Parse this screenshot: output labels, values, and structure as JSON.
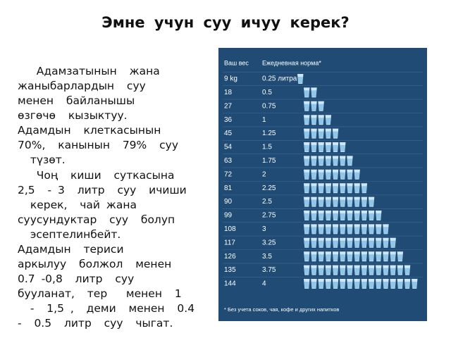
{
  "title": "Эмне учун суу   ичуу  керек?",
  "paragraphs": [
    [
      "   Адамзатынын  жана",
      "жаныбарлардын  суу",
      "менен  байланышы",
      "өзгөчө  кызыктуу.",
      "Адамдын  клеткасынын",
      "70%,  канынын  79%  суу",
      "  түзөт."
    ],
    [
      "   Чоң  киши  суткасына",
      "2,5  - 3  литр  суу  ичиши",
      "  керек,  чай жана",
      "суусундуктар  суу  болуп",
      "  эсептелинбейт.",
      "Адамдын  териси",
      "аркылуу  болжол  менен",
      "0.7 -0,8  литр  суу",
      "бууланат,  тер   менен  1",
      "  -  1,5 ,  деми  менен  0.4",
      "-  0.5  литр  суу  чыгат."
    ]
  ],
  "infographic": {
    "headers": [
      "Ваш вес",
      "Ежедневная норма*"
    ],
    "rows": [
      [
        "9 kg",
        "0.25 литра"
      ],
      [
        "18",
        "0.5"
      ],
      [
        "27",
        "0.75"
      ],
      [
        "36",
        "1"
      ],
      [
        "45",
        "1.25"
      ],
      [
        "54",
        "1.5"
      ],
      [
        "63",
        "1.75"
      ],
      [
        "72",
        "2"
      ],
      [
        "81",
        "2.25"
      ],
      [
        "90",
        "2.5"
      ],
      [
        "99",
        "2.75"
      ],
      [
        "108",
        "3"
      ],
      [
        "117",
        "3.25"
      ],
      [
        "126",
        "3.5"
      ],
      [
        "135",
        "3.75"
      ],
      [
        "144",
        "4"
      ]
    ],
    "footnote": "* Без учета соков, чая, кофе и других напитков"
  }
}
